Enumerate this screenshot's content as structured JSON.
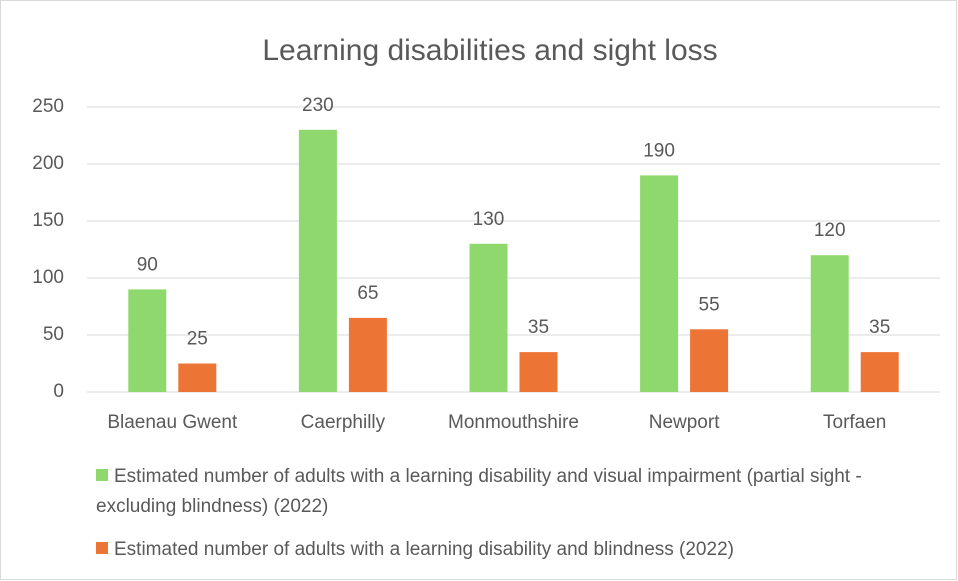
{
  "chart_data": {
    "type": "bar",
    "title": "Learning disabilities and sight loss",
    "categories": [
      "Blaenau Gwent",
      "Caerphilly",
      "Monmouthshire",
      "Newport",
      "Torfaen"
    ],
    "series": [
      {
        "name": "Estimated number of adults with a learning disability and visual impairment (partial sight - excluding blindness) (2022)",
        "color": "#8fd86e",
        "values": [
          90,
          230,
          130,
          190,
          120
        ]
      },
      {
        "name": "Estimated number of adults with a learning disability and blindness (2022)",
        "color": "#ec7434",
        "values": [
          25,
          65,
          35,
          55,
          35
        ]
      }
    ],
    "ylim": [
      0,
      250
    ],
    "yticks": [
      0,
      50,
      100,
      150,
      200,
      250
    ],
    "grid": true,
    "legend": "bottom"
  }
}
